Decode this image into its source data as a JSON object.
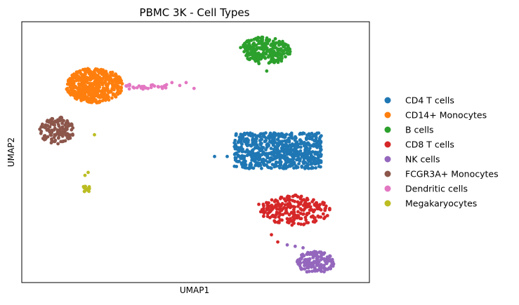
{
  "chart_data": {
    "type": "scatter",
    "title": "PBMC 3K - Cell Types",
    "xlabel": "UMAP1",
    "ylabel": "UMAP2",
    "xlim": [
      -8,
      14
    ],
    "ylim": [
      -8,
      10
    ],
    "grid": false,
    "ticks": false,
    "legend_position": "outside-right",
    "point_size": 2.4,
    "seed": 20240611,
    "series": [
      {
        "name": "CD4 T cells",
        "color": "#1f77b4",
        "clusters": [
          {
            "center": [
              8.2,
              1.1
            ],
            "spread": [
              2.9,
              1.3
            ],
            "count": 680,
            "shape": "box"
          }
        ],
        "points": [
          [
            4.2,
            0.7
          ],
          [
            5.0,
            0.7
          ],
          [
            6.6,
            1.1
          ]
        ]
      },
      {
        "name": "CD14+ Monocytes",
        "color": "#ff7f0e",
        "clusters": [
          {
            "center": [
              -3.4,
              5.6
            ],
            "spread": [
              1.8,
              1.2
            ],
            "count": 520,
            "shape": "ellipse"
          }
        ],
        "points": []
      },
      {
        "name": "B cells",
        "color": "#2ca02c",
        "clusters": [
          {
            "center": [
              7.4,
              8.0
            ],
            "spread": [
              1.6,
              0.95
            ],
            "count": 270,
            "shape": "ellipse"
          }
        ],
        "points": [
          [
            7.5,
            6.6
          ]
        ]
      },
      {
        "name": "CD8 T cells",
        "color": "#d62728",
        "clusters": [
          {
            "center": [
              9.3,
              -3.0
            ],
            "spread": [
              2.2,
              1.05
            ],
            "count": 230,
            "shape": "ellipse"
          }
        ],
        "points": [
          [
            7.0,
            -2.6
          ],
          [
            7.8,
            -4.7
          ],
          [
            8.2,
            -5.2
          ]
        ]
      },
      {
        "name": "NK cells",
        "color": "#9467bd",
        "clusters": [
          {
            "center": [
              10.6,
              -6.6
            ],
            "spread": [
              1.2,
              0.75
            ],
            "count": 150,
            "shape": "ellipse"
          }
        ],
        "points": [
          [
            8.8,
            -5.4
          ],
          [
            9.3,
            -5.5
          ],
          [
            9.8,
            -5.6
          ]
        ]
      },
      {
        "name": "FCGR3A+ Monocytes",
        "color": "#8c564b",
        "clusters": [
          {
            "center": [
              -5.8,
              2.5
            ],
            "spread": [
              1.1,
              0.95
            ],
            "count": 130,
            "shape": "ellipse"
          }
        ],
        "points": []
      },
      {
        "name": "Dendritic cells",
        "color": "#e377c2",
        "clusters": [
          {
            "center": [
              -0.5,
              5.5
            ],
            "spread": [
              1.8,
              0.18
            ],
            "count": 28,
            "shape": "box"
          }
        ],
        "points": [
          [
            1.5,
            5.8
          ],
          [
            2.0,
            5.6
          ],
          [
            2.4,
            5.8
          ],
          [
            2.9,
            5.4
          ],
          [
            -1.3,
            5.6
          ]
        ]
      },
      {
        "name": "Megakaryocytes",
        "color": "#bcbd22",
        "clusters": [
          {
            "center": [
              -3.9,
              -1.5
            ],
            "spread": [
              0.25,
              0.28
            ],
            "count": 14,
            "shape": "ellipse"
          }
        ],
        "points": [
          [
            -3.4,
            2.2
          ],
          [
            -4.0,
            -0.6
          ],
          [
            -3.8,
            -0.4
          ]
        ]
      }
    ]
  }
}
